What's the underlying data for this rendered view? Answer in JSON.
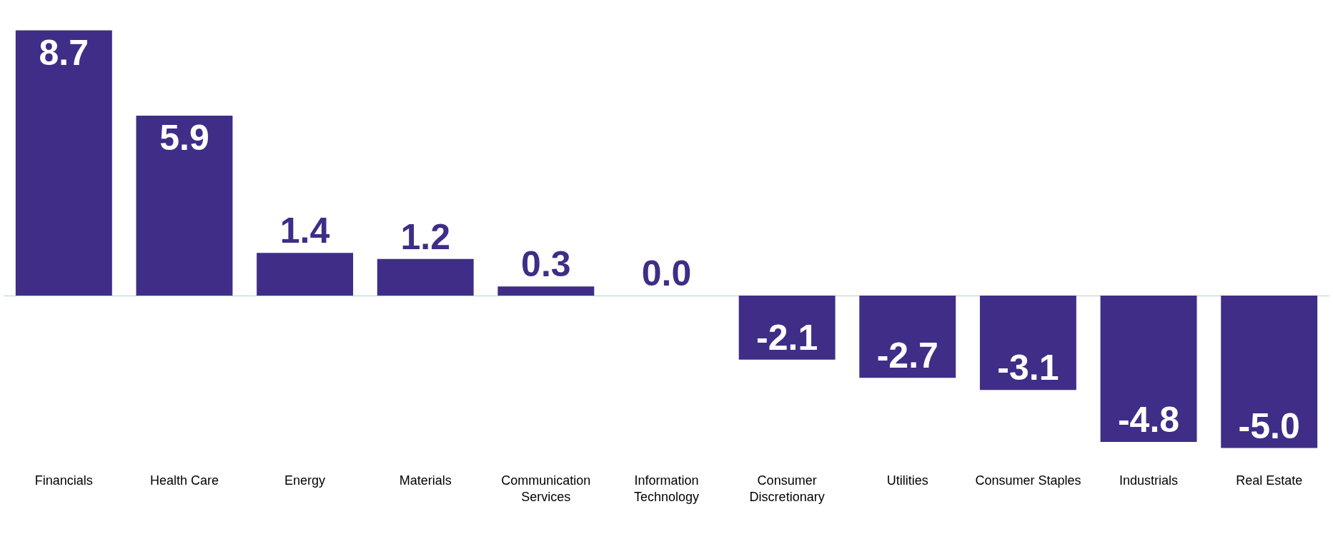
{
  "chart_data": {
    "type": "bar",
    "categories": [
      "Financials",
      "Health Care",
      "Energy",
      "Materials",
      "Communication Services",
      "Information Technology",
      "Consumer Discretionary",
      "Utilities",
      "Consumer Staples",
      "Industrials",
      "Real Estate"
    ],
    "values": [
      8.7,
      5.9,
      1.4,
      1.2,
      0.3,
      0.0,
      -2.1,
      -2.7,
      -3.1,
      -4.8,
      -5.0
    ],
    "value_labels": [
      "8.7",
      "5.9",
      "1.4",
      "1.2",
      "0.3",
      "0.0",
      "-2.1",
      "-2.7",
      "-3.1",
      "-4.8",
      "-5.0"
    ],
    "color": "#3f2d87",
    "grid": false
  }
}
